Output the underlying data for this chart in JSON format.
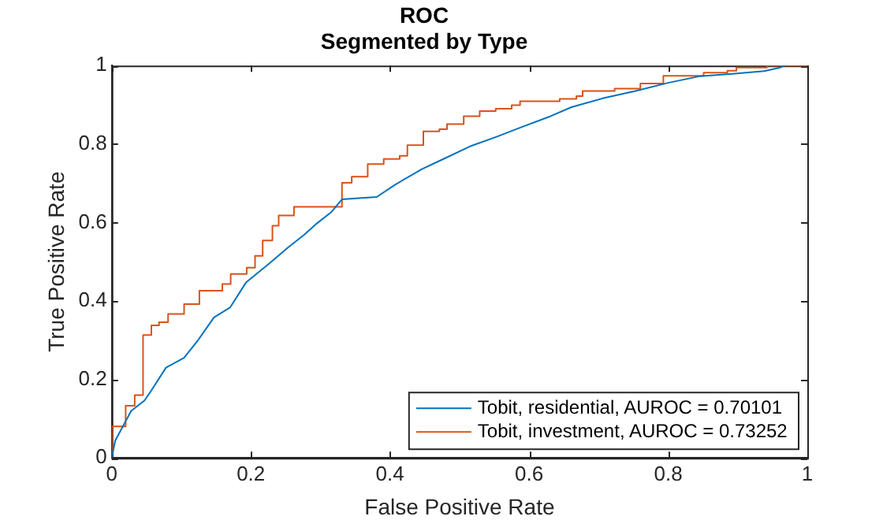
{
  "chart_data": {
    "type": "line",
    "title": "ROC",
    "subtitle": "Segmented by Type",
    "xlabel": "False Positive Rate",
    "ylabel": "True Positive Rate",
    "xlim": [
      0,
      1
    ],
    "ylim": [
      0,
      1
    ],
    "xticks": [
      0,
      0.2,
      0.4,
      0.6,
      0.8,
      1
    ],
    "yticks": [
      0,
      0.2,
      0.4,
      0.6,
      0.8,
      1
    ],
    "grid": false,
    "legend": "bottom right",
    "series": [
      {
        "name": "Tobit, residential, AUROC = 0.70101",
        "color": "#0072bd",
        "x": [
          0,
          0.005,
          0.028,
          0.047,
          0.057,
          0.078,
          0.104,
          0.124,
          0.147,
          0.17,
          0.193,
          0.224,
          0.254,
          0.277,
          0.293,
          0.316,
          0.331,
          0.381,
          0.408,
          0.446,
          0.477,
          0.515,
          0.554,
          0.592,
          0.631,
          0.661,
          0.707,
          0.753,
          0.8,
          0.846,
          0.892,
          0.938,
          0.961,
          0.968
        ],
        "values": [
          0,
          0.044,
          0.12,
          0.146,
          0.172,
          0.23,
          0.255,
          0.3,
          0.358,
          0.383,
          0.447,
          0.492,
          0.537,
          0.569,
          0.595,
          0.627,
          0.659,
          0.665,
          0.697,
          0.736,
          0.762,
          0.794,
          0.819,
          0.845,
          0.871,
          0.894,
          0.917,
          0.935,
          0.956,
          0.973,
          0.979,
          0.986,
          0.995,
          1
        ]
      },
      {
        "name": "Tobit, investment, AUROC = 0.73252",
        "color": "#d95319",
        "type": "step",
        "x": [
          0,
          0,
          0.02,
          0.033,
          0.045,
          0.057,
          0.068,
          0.081,
          0.104,
          0.126,
          0.159,
          0.171,
          0.194,
          0.206,
          0.217,
          0.231,
          0.24,
          0.262,
          0.331,
          0.345,
          0.368,
          0.391,
          0.414,
          0.425,
          0.448,
          0.471,
          0.482,
          0.506,
          0.529,
          0.552,
          0.575,
          0.587,
          0.644,
          0.668,
          0.677,
          0.723,
          0.76,
          0.793,
          0.851,
          0.885,
          0.898,
          0.942,
          1
        ],
        "values": [
          0,
          0.069,
          0.08,
          0.133,
          0.16,
          0.313,
          0.338,
          0.346,
          0.367,
          0.392,
          0.426,
          0.443,
          0.469,
          0.485,
          0.515,
          0.554,
          0.592,
          0.618,
          0.64,
          0.701,
          0.717,
          0.749,
          0.762,
          0.77,
          0.797,
          0.832,
          0.838,
          0.851,
          0.871,
          0.884,
          0.89,
          0.899,
          0.909,
          0.915,
          0.922,
          0.935,
          0.941,
          0.954,
          0.974,
          0.982,
          0.987,
          0.995,
          1
        ]
      }
    ]
  }
}
